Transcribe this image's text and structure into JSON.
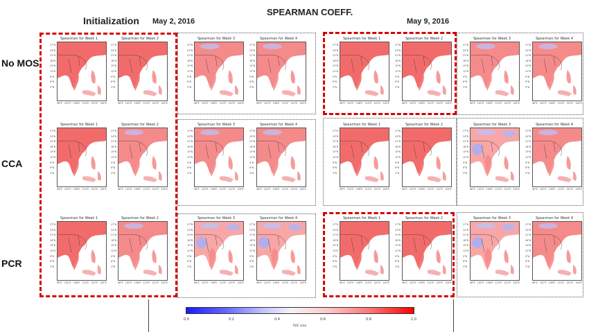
{
  "header": {
    "title": "SPEARMAN COEFF.",
    "init_label": "Initialization",
    "date1": "May 2, 2016",
    "date2": "May 9, 2016"
  },
  "rows": [
    {
      "label": "No MOS"
    },
    {
      "label": "CCA"
    },
    {
      "label": "PCR"
    }
  ],
  "panel_titles": [
    "Spearman for Week 1",
    "Spearman for Week 2",
    "Spearman for Week 3",
    "Spearman for Week 4"
  ],
  "lat_labels": [
    "27°N",
    "24°N",
    "21°N",
    "18°N",
    "15°N",
    "12°N",
    "9°N",
    "6°N",
    "3°N"
  ],
  "lon_labels": [
    "96°E",
    "102°E",
    "108°E",
    "114°E",
    "120°E",
    "126°E"
  ],
  "colorbar": {
    "ticks": [
      "0.0",
      "0.2",
      "0.4",
      "0.6",
      "0.8",
      "1.0"
    ],
    "label": "ROC area"
  },
  "colors": {
    "dash_red": "#d40000",
    "dot_gray": "#555555",
    "max": "#ff0000",
    "min": "#1a1aff"
  }
}
